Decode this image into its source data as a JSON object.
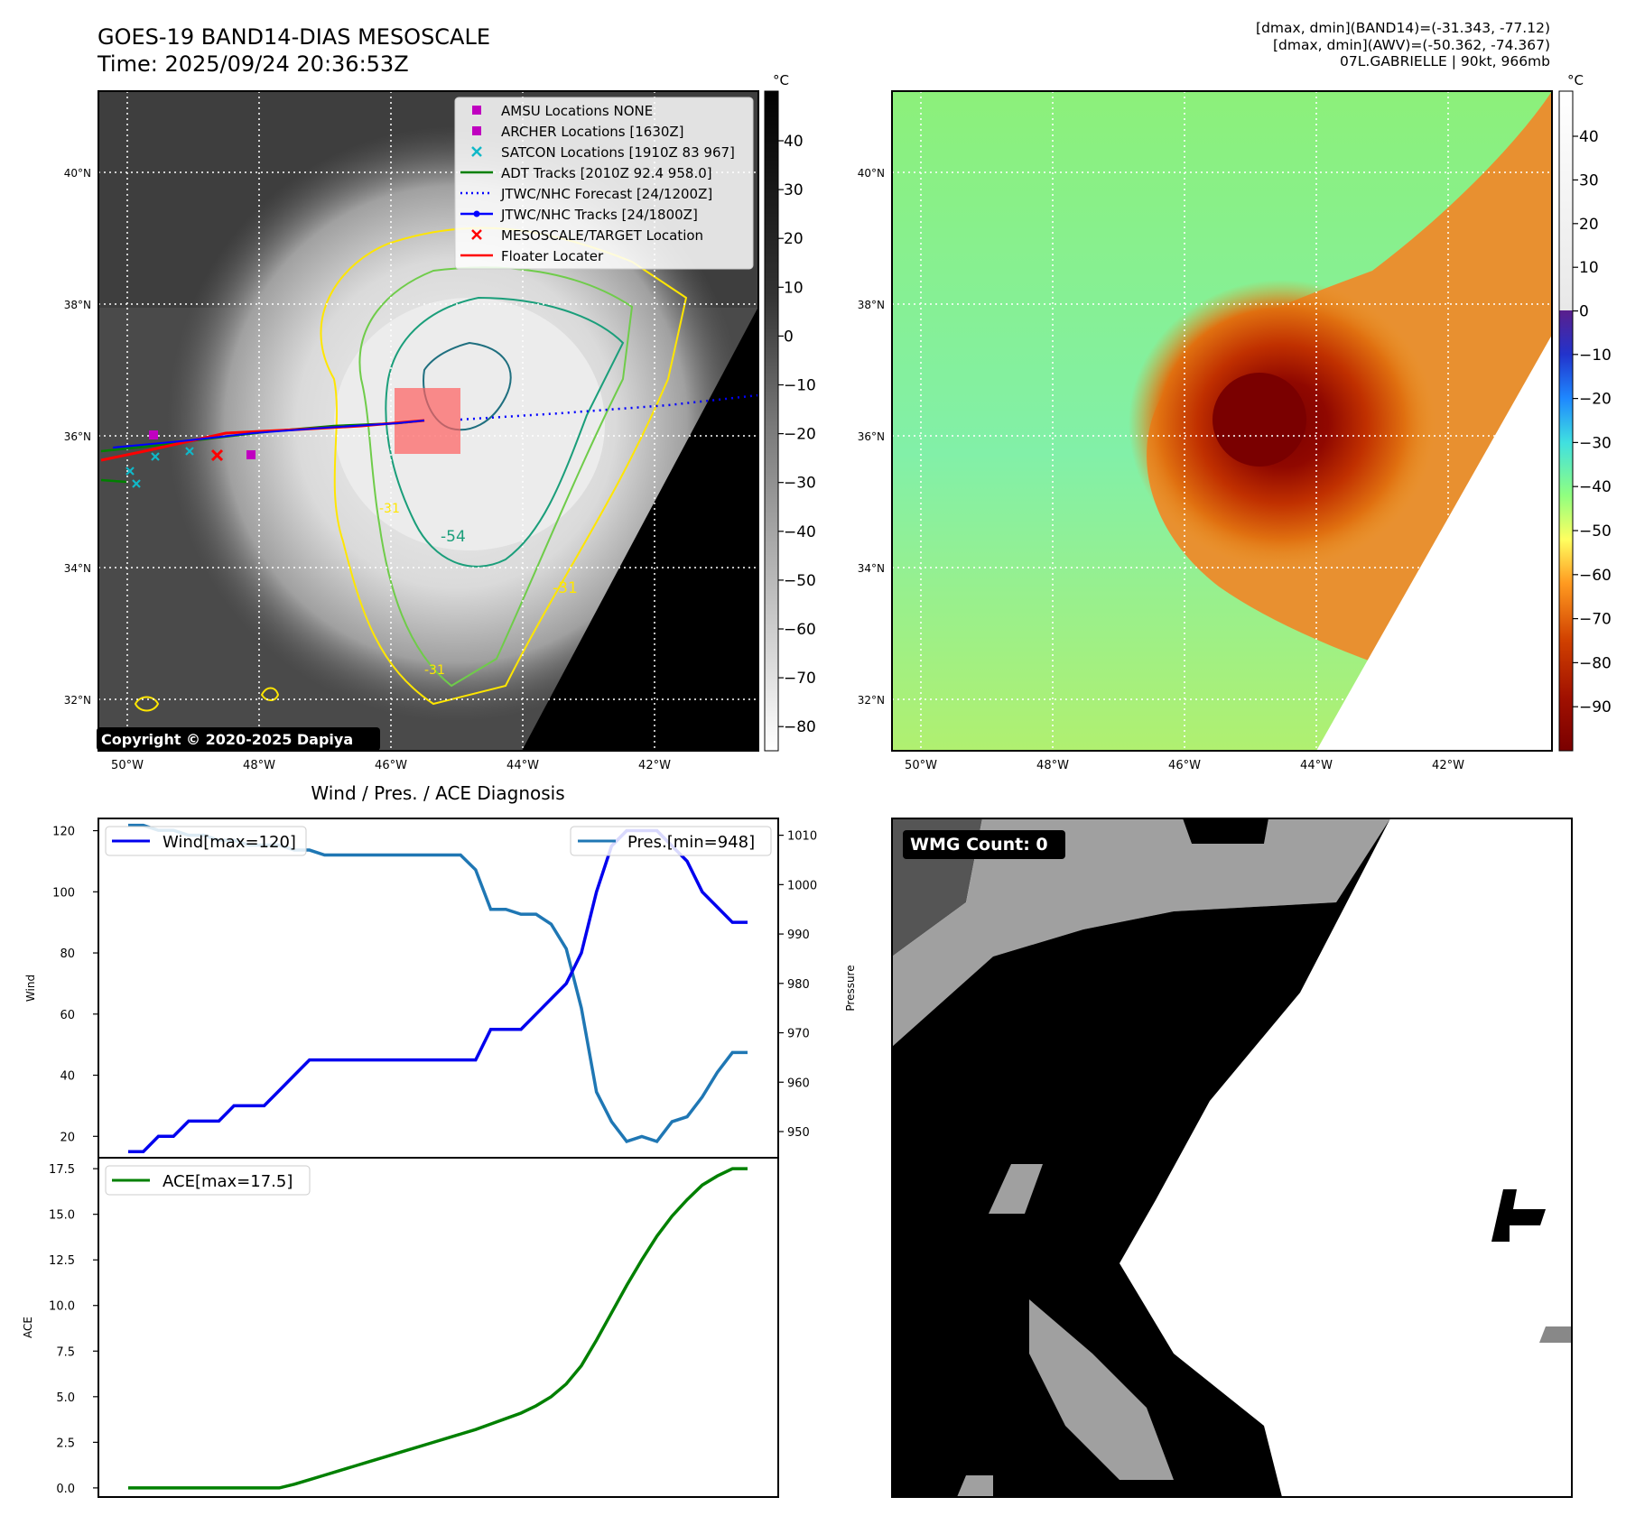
{
  "header": {
    "title_line1": "GOES-19 BAND14-DIAS MESOSCALE",
    "title_line2": "Time: 2025/09/24 20:36:53Z",
    "info_line1": "[dmax, dmin](BAND14)=(-31.343, -77.12)",
    "info_line2": "[dmax, dmin](AWV)=(-50.362, -74.367)",
    "info_line3": "07L.GABRIELLE | 90kt, 966mb"
  },
  "map": {
    "lon_ticks": [
      "50°W",
      "48°W",
      "46°W",
      "44°W",
      "42°W"
    ],
    "lat_ticks": [
      "40°N",
      "38°N",
      "36°N",
      "34°N",
      "32°N"
    ],
    "copyright": "Copyright © 2020-2025 Dapiya",
    "contour_labels": [
      "-54",
      "-31",
      "-31",
      "-31"
    ],
    "legend": [
      {
        "label": "AMSU Locations NONE",
        "color": "#c000c0",
        "marker": "square"
      },
      {
        "label": "ARCHER Locations [1630Z]",
        "color": "#c000c0",
        "marker": "square"
      },
      {
        "label": "SATCON Locations [1910Z 83 967]",
        "color": "#10b8c8",
        "marker": "x"
      },
      {
        "label": "ADT Tracks [2010Z 92.4 958.0]",
        "color": "#008000",
        "marker": "line"
      },
      {
        "label": "JTWC/NHC Forecast [24/1200Z]",
        "color": "#0000ff",
        "marker": "dotted"
      },
      {
        "label": "JTWC/NHC Tracks [24/1800Z]",
        "color": "#0000ff",
        "marker": "line-dot"
      },
      {
        "label": "MESOSCALE/TARGET Location",
        "color": "#ff0000",
        "marker": "x"
      },
      {
        "label": "Floater Locater",
        "color": "#ff0000",
        "marker": "line"
      }
    ]
  },
  "colorbar_band14": {
    "unit": "°C",
    "ticks": [
      "40",
      "30",
      "20",
      "10",
      "0",
      "−10",
      "−20",
      "−30",
      "−40",
      "−50",
      "−60",
      "−70",
      "−80"
    ]
  },
  "colorbar_awv": {
    "unit": "°C",
    "ticks": [
      "40",
      "30",
      "20",
      "10",
      "0",
      "−10",
      "−20",
      "−30",
      "−40",
      "−50",
      "−60",
      "−70",
      "−80",
      "−90"
    ]
  },
  "wmg": {
    "label": "WMG Count: 0"
  },
  "chart_data": [
    {
      "type": "line",
      "title": "Wind / Pres. / ACE Diagnosis",
      "ylabel": "Wind",
      "y2label": "Pressure",
      "ylim": [
        13,
        124
      ],
      "y2lim": [
        944.7,
        1013.4
      ],
      "yticks": [
        "120",
        "100",
        "80",
        "60",
        "40",
        "20"
      ],
      "y2ticks": [
        "1010",
        "1000",
        "990",
        "980",
        "970",
        "960",
        "950"
      ],
      "x": [
        0,
        1,
        2,
        3,
        4,
        5,
        6,
        7,
        8,
        9,
        10,
        11,
        12,
        13,
        14,
        15,
        16,
        17,
        18,
        19,
        20,
        21,
        22,
        23,
        24,
        25,
        26,
        27,
        28,
        29,
        30,
        31,
        32,
        33,
        34,
        35,
        36,
        37,
        38,
        39,
        40,
        41
      ],
      "series": [
        {
          "name": "Wind[max=120]",
          "color": "#0000ee",
          "values": [
            15,
            15,
            20,
            20,
            25,
            25,
            25,
            30,
            30,
            30,
            35,
            40,
            45,
            45,
            45,
            45,
            45,
            45,
            45,
            45,
            45,
            45,
            45,
            45,
            55,
            55,
            55,
            60,
            65,
            70,
            80,
            100,
            115,
            120,
            120,
            120,
            115,
            110,
            100,
            95,
            90,
            90
          ]
        },
        {
          "name": "Pres.[min=948]",
          "color": "#1f77b4",
          "values": [
            1012,
            1012,
            1011,
            1011,
            1010,
            1010,
            1009,
            1009,
            1008,
            1008,
            1008,
            1007,
            1007,
            1006,
            1006,
            1006,
            1006,
            1006,
            1006,
            1006,
            1006,
            1006,
            1006,
            1003,
            995,
            995,
            994,
            994,
            992,
            987,
            975,
            958,
            952,
            948,
            949,
            948,
            952,
            953,
            957,
            962,
            966,
            966
          ]
        }
      ]
    },
    {
      "type": "line",
      "ylabel": "ACE",
      "ylim": [
        -0.5,
        18.1
      ],
      "yticks": [
        "17.5",
        "15.0",
        "12.5",
        "10.0",
        "7.5",
        "5.0",
        "2.5",
        "0.0"
      ],
      "x": [
        0,
        1,
        2,
        3,
        4,
        5,
        6,
        7,
        8,
        9,
        10,
        11,
        12,
        13,
        14,
        15,
        16,
        17,
        18,
        19,
        20,
        21,
        22,
        23,
        24,
        25,
        26,
        27,
        28,
        29,
        30,
        31,
        32,
        33,
        34,
        35,
        36,
        37,
        38,
        39,
        40,
        41
      ],
      "series": [
        {
          "name": "ACE[max=17.5]",
          "color": "#008000",
          "values": [
            0,
            0,
            0,
            0,
            0,
            0,
            0,
            0,
            0,
            0,
            0,
            0.2,
            0.45,
            0.7,
            0.95,
            1.2,
            1.45,
            1.7,
            1.95,
            2.2,
            2.45,
            2.7,
            2.95,
            3.2,
            3.5,
            3.8,
            4.1,
            4.5,
            5.0,
            5.7,
            6.7,
            8.1,
            9.6,
            11.1,
            12.5,
            13.8,
            14.9,
            15.8,
            16.6,
            17.1,
            17.5,
            17.5
          ]
        }
      ]
    }
  ]
}
